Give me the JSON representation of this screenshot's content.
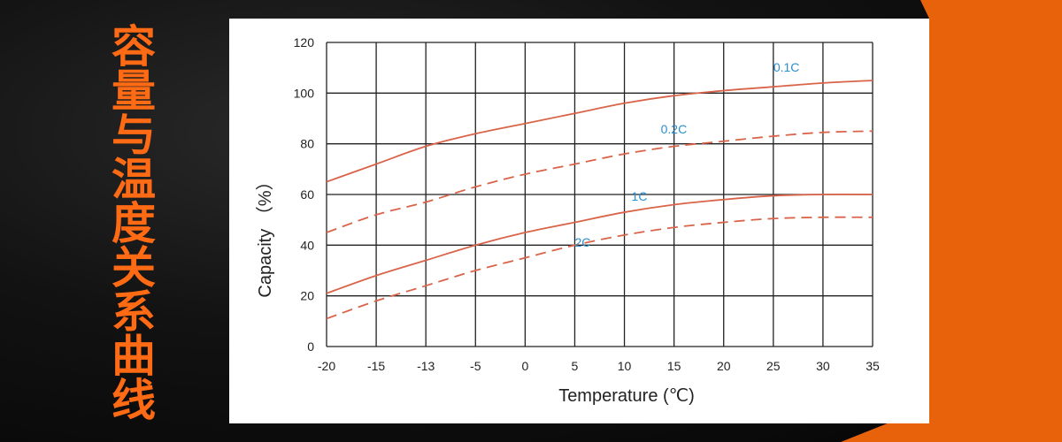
{
  "side_title": "容量与温度关系曲线",
  "colors": {
    "background": "#0e0e0e",
    "accent_orange": "#e8620c",
    "title_orange": "#ff6a14",
    "curve_red": "#d9644a",
    "label_blue": "#2a8fd1",
    "grid": "#222222"
  },
  "chart_data": {
    "type": "line",
    "xlabel": "Temperature (℃)",
    "ylabel": "Capacity （%）",
    "x_ticks": [
      "-20",
      "-15",
      "-13",
      "-5",
      "0",
      "5",
      "10",
      "15",
      "20",
      "25",
      "30",
      "35"
    ],
    "y_ticks": [
      "0",
      "20",
      "40",
      "60",
      "80",
      "100",
      "120"
    ],
    "ylim": [
      0,
      120
    ],
    "grid": true,
    "series": [
      {
        "name": "0.1C",
        "style": "solid",
        "x": [
          "-20",
          "-15",
          "-13",
          "-5",
          "0",
          "5",
          "10",
          "15",
          "20",
          "25",
          "30",
          "35"
        ],
        "y": [
          65,
          72,
          79,
          84,
          88,
          92,
          96,
          99,
          101,
          102.5,
          104,
          105
        ]
      },
      {
        "name": "0.2C",
        "style": "dashed",
        "x": [
          "-20",
          "-15",
          "-13",
          "-5",
          "0",
          "5",
          "10",
          "15",
          "20",
          "25",
          "30",
          "35"
        ],
        "y": [
          45,
          52,
          57,
          63,
          68,
          72,
          76,
          79,
          81,
          83,
          84.5,
          85
        ]
      },
      {
        "name": "1C",
        "style": "solid",
        "x": [
          "-20",
          "-15",
          "-13",
          "-5",
          "0",
          "5",
          "10",
          "15",
          "20",
          "25",
          "30",
          "35"
        ],
        "y": [
          21,
          28,
          34,
          40,
          45,
          49,
          53,
          56,
          58,
          59.5,
          60,
          60
        ]
      },
      {
        "name": "2C",
        "style": "dashed",
        "x": [
          "-20",
          "-15",
          "-13",
          "-5",
          "0",
          "5",
          "10",
          "15",
          "20",
          "25",
          "30",
          "35"
        ],
        "y": [
          11,
          18,
          24,
          30,
          35,
          40,
          44,
          47,
          49,
          50.5,
          51,
          51
        ]
      }
    ]
  }
}
